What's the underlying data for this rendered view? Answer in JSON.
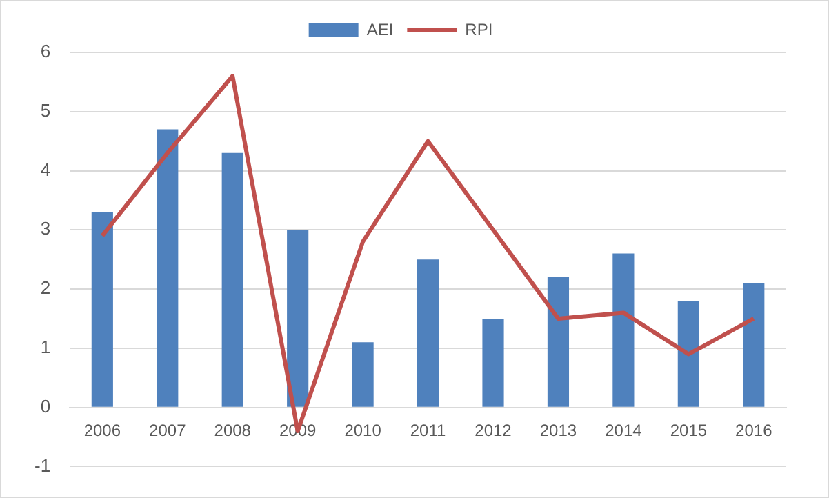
{
  "chart_data": {
    "type": "bar",
    "categories": [
      "2006",
      "2007",
      "2008",
      "2009",
      "2010",
      "2011",
      "2012",
      "2013",
      "2014",
      "2015",
      "2016"
    ],
    "series": [
      {
        "name": "AEI",
        "color": "#4f81bd",
        "values": [
          3.3,
          4.7,
          4.3,
          3.0,
          1.1,
          2.5,
          1.5,
          2.2,
          2.6,
          1.8,
          2.1
        ]
      },
      {
        "name": "RPI",
        "type": "line",
        "color": "#c0504d",
        "values": [
          2.9,
          4.3,
          5.6,
          -0.4,
          2.8,
          4.5,
          3.0,
          1.5,
          1.6,
          0.9,
          1.5
        ]
      }
    ],
    "ylim": [
      -1,
      6
    ],
    "yticks": [
      -1,
      0,
      1,
      2,
      3,
      4,
      5,
      6
    ],
    "grid": "y",
    "legend": "top",
    "marker": "none"
  }
}
